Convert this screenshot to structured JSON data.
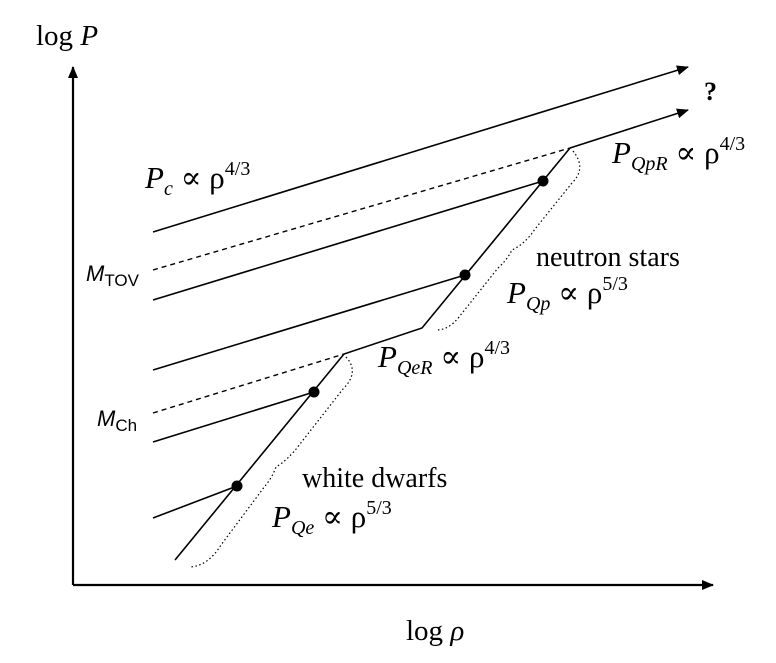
{
  "axes": {
    "y_log": "log",
    "y_var": "P",
    "x_log": "log",
    "x_var": "ρ"
  },
  "labels": {
    "question": "?",
    "pc": {
      "base": "P",
      "sub": "c",
      "rel": " ∝ ρ",
      "exp": "4/3"
    },
    "pqpr": {
      "base": "P",
      "sub": "QpR",
      "rel": " ∝ ρ",
      "exp": "4/3"
    },
    "pqp": {
      "base": "P",
      "sub": "Qp",
      "rel": " ∝ ρ",
      "exp": "5/3"
    },
    "pqer": {
      "base": "P",
      "sub": "QeR",
      "rel": " ∝ ρ",
      "exp": "4/3"
    },
    "pqe": {
      "base": "P",
      "sub": "Qe",
      "rel": " ∝ ρ",
      "exp": "5/3"
    },
    "neutron_stars": "neutron stars",
    "white_dwarfs": "white dwarfs",
    "m_tov": {
      "base": "M",
      "sub": "TOV"
    },
    "m_ch": {
      "base": "M",
      "sub": "Ch"
    }
  }
}
